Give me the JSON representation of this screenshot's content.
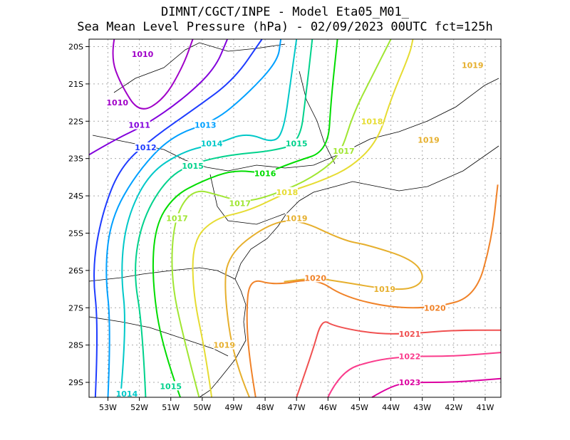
{
  "chart_data": {
    "type": "contour",
    "title": "DIMNT/CGCT/INPE  -   Model Eta05_M01_",
    "subtitle": "Sea Mean Level Pressure (hPa) - 02/09/2023 00UTC fct=125h",
    "x_ticks": [
      "53W",
      "52W",
      "51W",
      "50W",
      "49W",
      "48W",
      "47W",
      "46W",
      "45W",
      "44W",
      "43W",
      "42W",
      "41W"
    ],
    "x_values": [
      -53,
      -52,
      -51,
      -50,
      -49,
      -48,
      -47,
      -46,
      -45,
      -44,
      -43,
      -42,
      -41
    ],
    "y_ticks": [
      "20S",
      "21S",
      "22S",
      "23S",
      "24S",
      "25S",
      "26S",
      "27S",
      "28S",
      "29S"
    ],
    "y_values": [
      -20,
      -21,
      -22,
      -23,
      -24,
      -25,
      -26,
      -27,
      -28,
      -29
    ],
    "xlim": [
      -53.6,
      -40.5
    ],
    "ylim": [
      -29.4,
      -19.8
    ],
    "grid": true,
    "contours": [
      {
        "level": "1010",
        "color": "#a000c8",
        "label_at": [
          [
            -51.9,
            -20.2
          ],
          [
            -52.7,
            -21.5
          ]
        ],
        "points": [
          [
            -52.8,
            -19.8
          ],
          [
            -52.9,
            -20.3
          ],
          [
            -52.6,
            -21.0
          ],
          [
            -52.0,
            -21.8
          ],
          [
            -51.2,
            -21.4
          ],
          [
            -50.6,
            -20.5
          ],
          [
            -50.3,
            -19.8
          ]
        ]
      },
      {
        "level": "1011",
        "color": "#8200dc",
        "label_at": [
          [
            -52.0,
            -22.1
          ]
        ],
        "points": [
          [
            -53.6,
            -22.9
          ],
          [
            -52.8,
            -22.5
          ],
          [
            -51.8,
            -22.1
          ],
          [
            -50.6,
            -21.4
          ],
          [
            -49.6,
            -20.6
          ],
          [
            -49.2,
            -19.8
          ]
        ]
      },
      {
        "level": "1012",
        "color": "#1e3cff",
        "label_at": [
          [
            -51.8,
            -22.7
          ]
        ],
        "points": [
          [
            -53.4,
            -29.4
          ],
          [
            -53.3,
            -27.5
          ],
          [
            -53.5,
            -26.0
          ],
          [
            -53.2,
            -24.5
          ],
          [
            -52.6,
            -23.2
          ],
          [
            -51.5,
            -22.4
          ],
          [
            -50.3,
            -21.7
          ],
          [
            -49.0,
            -20.9
          ],
          [
            -48.1,
            -19.8
          ]
        ]
      },
      {
        "level": "1013",
        "color": "#00a0ff",
        "label_at": [
          [
            -49.9,
            -22.1
          ]
        ],
        "points": [
          [
            -53.0,
            -29.4
          ],
          [
            -52.9,
            -27.5
          ],
          [
            -53.1,
            -26.0
          ],
          [
            -52.9,
            -24.6
          ],
          [
            -52.1,
            -23.4
          ],
          [
            -51.0,
            -22.4
          ],
          [
            -49.6,
            -22.0
          ],
          [
            -48.6,
            -21.3
          ],
          [
            -47.6,
            -20.4
          ],
          [
            -47.5,
            -19.8
          ]
        ]
      },
      {
        "level": "1014",
        "color": "#00c8c8",
        "label_at": [
          [
            -49.7,
            -22.6
          ],
          [
            -52.4,
            -29.3
          ]
        ],
        "points": [
          [
            -52.6,
            -29.4
          ],
          [
            -52.4,
            -27.5
          ],
          [
            -52.6,
            -26.0
          ],
          [
            -52.4,
            -24.6
          ],
          [
            -51.7,
            -23.4
          ],
          [
            -50.6,
            -22.8
          ],
          [
            -49.5,
            -22.6
          ],
          [
            -48.6,
            -22.3
          ],
          [
            -47.7,
            -22.6
          ],
          [
            -47.4,
            -22.2
          ],
          [
            -47.2,
            -21.0
          ],
          [
            -47.0,
            -19.8
          ]
        ]
      },
      {
        "level": "1015",
        "color": "#00d28c",
        "label_at": [
          [
            -50.3,
            -23.2
          ],
          [
            -47.0,
            -22.6
          ],
          [
            -51.0,
            -29.1
          ]
        ],
        "points": [
          [
            -51.8,
            -29.4
          ],
          [
            -51.9,
            -27.5
          ],
          [
            -52.2,
            -26.0
          ],
          [
            -51.9,
            -24.6
          ],
          [
            -51.1,
            -23.5
          ],
          [
            -50.2,
            -23.1
          ],
          [
            -49.1,
            -22.9
          ],
          [
            -47.8,
            -22.8
          ],
          [
            -46.9,
            -22.6
          ],
          [
            -46.7,
            -21.3
          ],
          [
            -46.5,
            -19.8
          ]
        ]
      },
      {
        "level": "1016",
        "color": "#00dc00",
        "label_at": [
          [
            -48.0,
            -23.4
          ]
        ],
        "points": [
          [
            -50.7,
            -29.4
          ],
          [
            -51.3,
            -28.0
          ],
          [
            -51.6,
            -26.2
          ],
          [
            -51.5,
            -24.8
          ],
          [
            -50.9,
            -24.0
          ],
          [
            -50.0,
            -23.6
          ],
          [
            -49.0,
            -23.3
          ],
          [
            -48.0,
            -23.4
          ],
          [
            -47.1,
            -23.1
          ],
          [
            -46.0,
            -22.8
          ],
          [
            -45.9,
            -21.4
          ],
          [
            -45.7,
            -19.8
          ]
        ]
      },
      {
        "level": "1017",
        "color": "#a0e632",
        "label_at": [
          [
            -50.8,
            -24.6
          ],
          [
            -48.8,
            -24.2
          ],
          [
            -45.5,
            -22.8
          ]
        ],
        "points": [
          [
            -50.1,
            -29.4
          ],
          [
            -50.6,
            -27.8
          ],
          [
            -51.0,
            -26.2
          ],
          [
            -50.9,
            -24.6
          ],
          [
            -50.3,
            -23.8
          ],
          [
            -49.4,
            -24.0
          ],
          [
            -48.6,
            -24.2
          ],
          [
            -47.2,
            -23.8
          ],
          [
            -46.3,
            -23.4
          ],
          [
            -45.6,
            -22.9
          ],
          [
            -45.2,
            -21.8
          ],
          [
            -44.6,
            -20.8
          ],
          [
            -44.0,
            -19.8
          ]
        ]
      },
      {
        "level": "1018",
        "color": "#e6dc32",
        "label_at": [
          [
            -47.3,
            -23.9
          ],
          [
            -44.6,
            -22.0
          ]
        ],
        "points": [
          [
            -49.7,
            -29.4
          ],
          [
            -49.9,
            -28.2
          ],
          [
            -50.3,
            -26.6
          ],
          [
            -50.3,
            -25.2
          ],
          [
            -49.6,
            -24.6
          ],
          [
            -48.5,
            -24.4
          ],
          [
            -47.3,
            -23.9
          ],
          [
            -46.2,
            -23.6
          ],
          [
            -45.2,
            -23.2
          ],
          [
            -44.4,
            -22.5
          ],
          [
            -44.0,
            -21.4
          ],
          [
            -43.4,
            -20.2
          ],
          [
            -43.3,
            -19.8
          ]
        ]
      },
      {
        "level": "1019",
        "color": "#e6af2d",
        "label_at": [
          [
            -47.0,
            -24.6
          ],
          [
            -44.2,
            -26.5
          ],
          [
            -42.8,
            -22.5
          ],
          [
            -41.4,
            -20.5
          ],
          [
            -49.3,
            -28.0
          ]
        ],
        "points": [
          [
            -48.5,
            -29.4
          ],
          [
            -49.0,
            -28.4
          ],
          [
            -49.3,
            -26.6
          ],
          [
            -49.2,
            -25.6
          ],
          [
            -48.0,
            -24.8
          ],
          [
            -47.0,
            -24.6
          ],
          [
            -45.5,
            -25.2
          ],
          [
            -44.8,
            -25.3
          ],
          [
            -43.3,
            -25.7
          ],
          [
            -42.9,
            -26.2
          ],
          [
            -43.3,
            -26.5
          ],
          [
            -44.2,
            -26.5
          ],
          [
            -45.6,
            -26.3
          ],
          [
            -46.4,
            -26.2
          ],
          [
            -47.4,
            -26.3
          ]
        ]
      },
      {
        "level": "1020",
        "color": "#f08228",
        "label_at": [
          [
            -46.4,
            -26.2
          ],
          [
            -42.6,
            -27.0
          ]
        ],
        "points": [
          [
            -48.3,
            -29.4
          ],
          [
            -48.5,
            -28.4
          ],
          [
            -48.6,
            -27.2
          ],
          [
            -48.5,
            -26.2
          ],
          [
            -47.7,
            -26.4
          ],
          [
            -46.4,
            -26.2
          ],
          [
            -45.5,
            -26.7
          ],
          [
            -44.0,
            -27.0
          ],
          [
            -42.6,
            -27.0
          ],
          [
            -41.3,
            -26.7
          ],
          [
            -40.8,
            -25.2
          ],
          [
            -40.6,
            -23.7
          ]
        ]
      },
      {
        "level": "1021",
        "color": "#f05050",
        "label_at": [
          [
            -43.4,
            -27.7
          ]
        ],
        "points": [
          [
            -47.0,
            -29.4
          ],
          [
            -46.5,
            -28.2
          ],
          [
            -46.2,
            -27.3
          ],
          [
            -45.8,
            -27.5
          ],
          [
            -44.5,
            -27.7
          ],
          [
            -43.4,
            -27.7
          ],
          [
            -42.0,
            -27.6
          ],
          [
            -40.5,
            -27.6
          ]
        ]
      },
      {
        "level": "1022",
        "color": "#fa3c8c",
        "label_at": [
          [
            -43.4,
            -28.3
          ]
        ],
        "points": [
          [
            -46.0,
            -29.4
          ],
          [
            -45.6,
            -28.7
          ],
          [
            -44.5,
            -28.4
          ],
          [
            -43.4,
            -28.3
          ],
          [
            -42.0,
            -28.3
          ],
          [
            -40.5,
            -28.2
          ]
        ]
      },
      {
        "level": "1023",
        "color": "#dc00a0",
        "label_at": [
          [
            -43.4,
            -29.0
          ]
        ],
        "points": [
          [
            -44.6,
            -29.4
          ],
          [
            -44.0,
            -29.1
          ],
          [
            -43.4,
            -29.0
          ],
          [
            -42.0,
            -29.0
          ],
          [
            -40.5,
            -28.9
          ]
        ]
      }
    ]
  }
}
